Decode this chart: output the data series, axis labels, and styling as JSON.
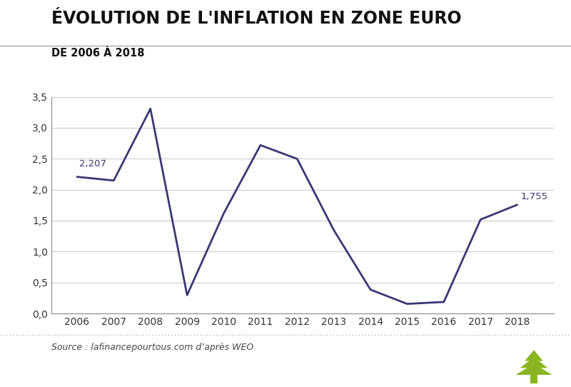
{
  "title": "ÉVOLUTION DE L'INFLATION EN ZONE EURO",
  "subtitle": "DE 2006 À 2018",
  "source": "Source : lafinancepourtous.com d’après WEO",
  "years": [
    2006,
    2007,
    2008,
    2009,
    2010,
    2011,
    2012,
    2013,
    2014,
    2015,
    2016,
    2017,
    2018
  ],
  "values": [
    2.207,
    2.147,
    3.307,
    0.296,
    1.618,
    2.718,
    2.497,
    1.346,
    0.385,
    0.155,
    0.186,
    1.517,
    1.755
  ],
  "line_color": "#383874",
  "line_width": 2.0,
  "annotation_color": "#383874",
  "annotation_fontsize": 9.5,
  "title_fontsize": 17,
  "subtitle_fontsize": 10.5,
  "title_color": "#111111",
  "subtitle_color": "#111111",
  "source_fontsize": 9,
  "source_color": "#444444",
  "bg_color": "#ffffff",
  "grid_color": "#cccccc",
  "ylim": [
    0,
    3.5
  ],
  "yticks": [
    0.0,
    0.5,
    1.0,
    1.5,
    2.0,
    2.5,
    3.0,
    3.5
  ],
  "ytick_labels": [
    "0,0",
    "0,5",
    "1,0",
    "1,5",
    "2,0",
    "2,5",
    "3,0",
    "3,5"
  ],
  "tick_fontsize": 10,
  "tree_color": "#8ab520",
  "separator_color": "#999999",
  "spine_color": "#888888"
}
